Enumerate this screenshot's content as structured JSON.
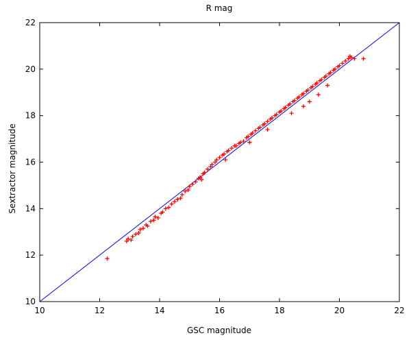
{
  "chart_data": {
    "type": "scatter",
    "title": "R mag",
    "xlabel": "GSC magnitude",
    "ylabel": "Sextractor magnitude",
    "xlim": [
      10,
      22
    ],
    "ylim": [
      10,
      22
    ],
    "xticks": [
      10,
      12,
      14,
      16,
      18,
      20,
      22
    ],
    "yticks": [
      10,
      12,
      14,
      16,
      18,
      20,
      22
    ],
    "grid": false,
    "legend": "none",
    "marker_color": "#ff0000",
    "line_color": "#0000ff",
    "reference_line": {
      "x": [
        10,
        22
      ],
      "y": [
        10,
        22
      ]
    },
    "series": [
      {
        "marker": "+",
        "x": [
          12.25,
          12.9,
          12.95,
          13.05,
          13.1,
          13.2,
          13.3,
          13.35,
          13.45,
          13.55,
          13.6,
          13.7,
          13.8,
          13.85,
          13.95,
          14.05,
          14.1,
          14.2,
          14.3,
          14.4,
          14.5,
          14.6,
          14.7,
          14.75,
          14.85,
          14.95,
          15.0,
          15.1,
          15.2,
          15.3,
          15.35,
          15.45,
          15.5,
          15.6,
          15.7,
          15.75,
          15.85,
          15.9,
          16.0,
          16.1,
          16.15,
          16.25,
          16.3,
          16.4,
          16.5,
          16.55,
          16.65,
          16.7,
          16.8,
          16.9,
          16.95,
          17.05,
          17.1,
          17.2,
          17.3,
          17.35,
          17.45,
          17.5,
          17.6,
          17.7,
          17.75,
          17.85,
          17.9,
          18.0,
          18.05,
          18.15,
          18.2,
          18.3,
          18.35,
          18.45,
          18.5,
          18.6,
          18.65,
          18.75,
          18.8,
          18.9,
          18.95,
          19.05,
          19.1,
          19.2,
          19.25,
          19.35,
          19.4,
          19.5,
          19.55,
          19.65,
          19.7,
          19.8,
          19.85,
          19.95,
          20.0,
          20.1,
          20.2,
          20.3,
          20.4,
          20.5,
          20.8,
          17.6,
          18.4,
          19.0,
          19.6,
          17.0,
          16.2,
          15.4,
          14.6,
          18.8,
          19.3,
          20.35
        ],
        "y": [
          11.85,
          12.6,
          12.7,
          12.65,
          12.8,
          12.9,
          12.95,
          13.1,
          13.15,
          13.3,
          13.25,
          13.45,
          13.5,
          13.65,
          13.6,
          13.8,
          13.85,
          14.0,
          14.05,
          14.2,
          14.3,
          14.4,
          14.45,
          14.6,
          14.75,
          14.8,
          14.95,
          15.05,
          15.15,
          15.3,
          15.35,
          15.5,
          15.55,
          15.7,
          15.8,
          15.9,
          16.0,
          16.1,
          16.2,
          16.3,
          16.35,
          16.45,
          16.5,
          16.6,
          16.7,
          16.7,
          16.8,
          16.85,
          16.9,
          17.05,
          17.1,
          17.2,
          17.25,
          17.35,
          17.45,
          17.5,
          17.6,
          17.65,
          17.75,
          17.85,
          17.9,
          18.0,
          18.05,
          18.15,
          18.2,
          18.3,
          18.35,
          18.45,
          18.5,
          18.6,
          18.65,
          18.75,
          18.8,
          18.9,
          18.95,
          19.05,
          19.1,
          19.2,
          19.25,
          19.35,
          19.4,
          19.5,
          19.55,
          19.65,
          19.7,
          19.8,
          19.85,
          19.95,
          20.0,
          20.1,
          20.15,
          20.25,
          20.35,
          20.45,
          20.5,
          20.45,
          20.45,
          17.4,
          18.1,
          18.6,
          19.3,
          16.85,
          16.1,
          15.25,
          14.4,
          18.4,
          18.9,
          20.55
        ]
      }
    ]
  }
}
